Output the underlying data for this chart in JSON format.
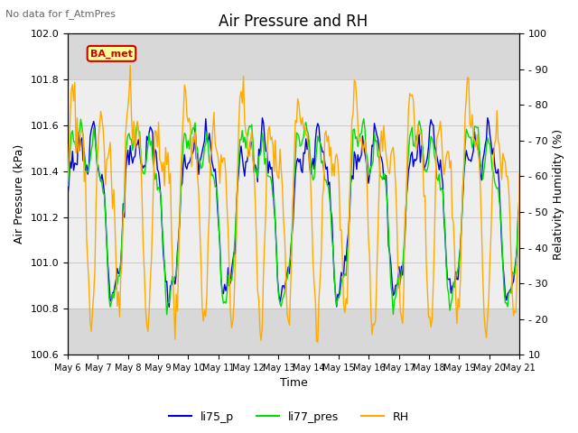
{
  "title": "Air Pressure and RH",
  "subtitle": "No data for f_AtmPres",
  "xlabel": "Time",
  "ylabel_left": "Air Pressure (kPa)",
  "ylabel_right": "Relativity Humidity (%)",
  "ylim_left": [
    100.6,
    102.0
  ],
  "ylim_right": [
    10,
    100
  ],
  "yticks_left": [
    100.6,
    100.8,
    101.0,
    101.2,
    101.4,
    101.6,
    101.8,
    102.0
  ],
  "yticks_right": [
    10,
    20,
    30,
    40,
    50,
    60,
    70,
    80,
    90,
    100
  ],
  "xtick_labels": [
    "May 6",
    "May 7",
    "May 8",
    "May 9",
    "May 10",
    "May 11",
    "May 12",
    "May 13",
    "May 14",
    "May 15",
    "May 16",
    "May 17",
    "May 18",
    "May 19",
    "May 20",
    "May 21"
  ],
  "legend_labels": [
    "li75_p",
    "li77_pres",
    "RH"
  ],
  "legend_colors": [
    "#0000dd",
    "#00dd00",
    "#ffaa00"
  ],
  "line_colors": [
    "#0000dd",
    "#00dd00",
    "#ffaa00"
  ],
  "BA_met_box_color": "#ffff99",
  "BA_met_border_color": "#cc0000",
  "BA_met_text_color": "#cc0000",
  "background_color": "#ffffff",
  "plot_bg_color": "#d8d8d8",
  "inner_bg_color": "#eeeeee",
  "title_fontsize": 12,
  "label_fontsize": 9,
  "tick_fontsize": 8
}
